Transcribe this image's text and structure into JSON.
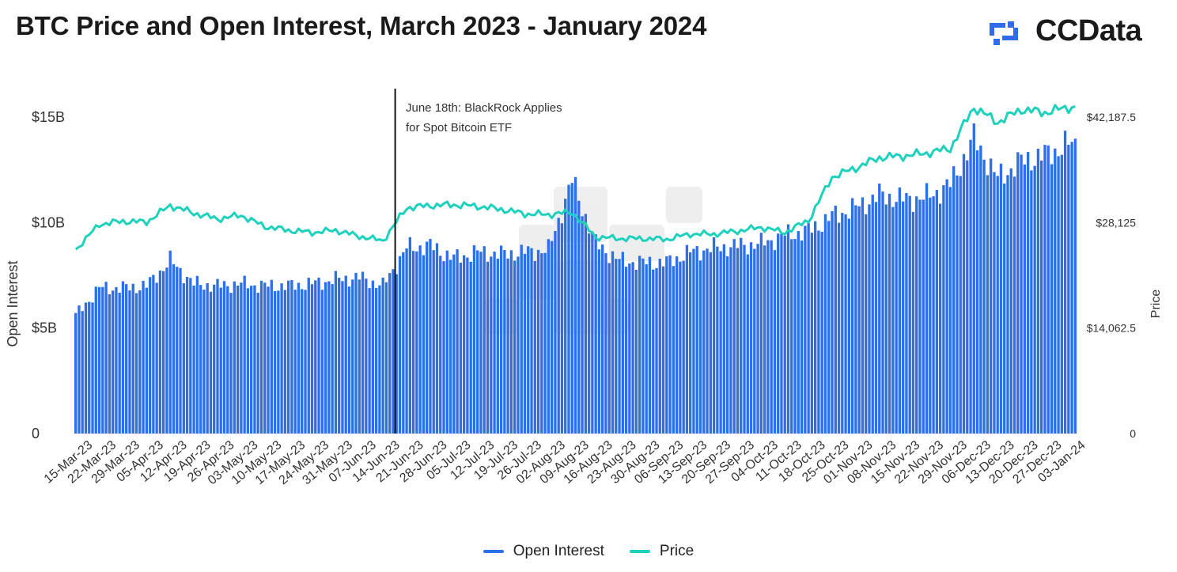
{
  "header": {
    "title": "BTC Price and Open Interest, March 2023 - January 2024",
    "logo_text": "CCData"
  },
  "colors": {
    "open_interest": "#2d6fe8",
    "price": "#1fd1bc",
    "annotation_line": "#111111",
    "logo_blue": "#2f6bea"
  },
  "chart_data": {
    "type": "bar",
    "title": "BTC Price and Open Interest, March 2023 - January 2024",
    "ylabel": "Open Interest",
    "y2label": "Price",
    "ylim": [
      0,
      15000000000
    ],
    "y2lim": [
      0,
      42187.5
    ],
    "y_ticks": [
      {
        "value": 0,
        "label": "0"
      },
      {
        "value": 5000000000,
        "label": "$5B"
      },
      {
        "value": 10000000000,
        "label": "$10B"
      },
      {
        "value": 15000000000,
        "label": "$15B"
      }
    ],
    "y2_ticks": [
      {
        "value": 0,
        "label": "0"
      },
      {
        "value": 14062.5,
        "label": "$14,062.5"
      },
      {
        "value": 28125,
        "label": "$28,125"
      },
      {
        "value": 42187.5,
        "label": "$42,187.5"
      }
    ],
    "x_tick_labels": [
      "15-Mar-23",
      "22-Mar-23",
      "29-Mar-23",
      "05-Apr-23",
      "12-Apr-23",
      "19-Apr-23",
      "26-Apr-23",
      "03-May-23",
      "10-May-23",
      "17-May-23",
      "24-May-23",
      "31-May-23",
      "07-Jun-23",
      "14-Jun-23",
      "21-Jun-23",
      "28-Jun-23",
      "05-Jul-23",
      "12-Jul-23",
      "19-Jul-23",
      "26-Jul-23",
      "02-Aug-23",
      "09-Aug-23",
      "16-Aug-23",
      "23-Aug-23",
      "30-Aug-23",
      "06-Sep-23",
      "13-Sep-23",
      "20-Sep-23",
      "27-Sep-23",
      "04-Oct-23",
      "11-Oct-23",
      "18-Oct-23",
      "25-Oct-23",
      "01-Nov-23",
      "08-Nov-23",
      "15-Nov-23",
      "22-Nov-23",
      "29-Nov-23",
      "06-Dec-23",
      "13-Dec-23",
      "20-Dec-23",
      "27-Dec-23",
      "03-Jan-24"
    ],
    "legend_position": "bottom",
    "grid": false,
    "annotation": {
      "date": "18-Jun-23",
      "lines": [
        "June 18th: BlackRock Applies",
        "for Spot Bitcoin ETF"
      ]
    },
    "series": [
      {
        "name": "Open Interest",
        "type": "bar",
        "axis": "left",
        "weekly_billions": [
          5.6,
          6.9,
          6.9,
          7.0,
          8.2,
          7.1,
          7.0,
          7.1,
          7.0,
          7.0,
          7.1,
          7.3,
          7.4,
          7.0,
          8.8,
          8.9,
          8.3,
          8.6,
          8.5,
          8.6,
          8.7,
          12.0,
          9.0,
          8.2,
          8.1,
          8.1,
          8.6,
          8.8,
          8.9,
          9.0,
          9.4,
          9.6,
          10.3,
          10.7,
          11.3,
          11.1,
          11.2,
          11.8,
          14.0,
          12.1,
          12.9,
          13.2,
          13.7
        ]
      },
      {
        "name": "Price",
        "type": "line",
        "axis": "right",
        "weekly_usd": [
          24500,
          27900,
          28300,
          28200,
          30400,
          29400,
          28600,
          29100,
          27600,
          27100,
          26800,
          27100,
          26300,
          25700,
          30100,
          30400,
          30500,
          30300,
          29900,
          29300,
          29200,
          29500,
          26200,
          26000,
          26000,
          25900,
          26600,
          26600,
          27000,
          27500,
          26800,
          28400,
          34200,
          35400,
          36800,
          37000,
          37400,
          38000,
          43500,
          41500,
          43200,
          42800,
          43500
        ]
      }
    ]
  }
}
